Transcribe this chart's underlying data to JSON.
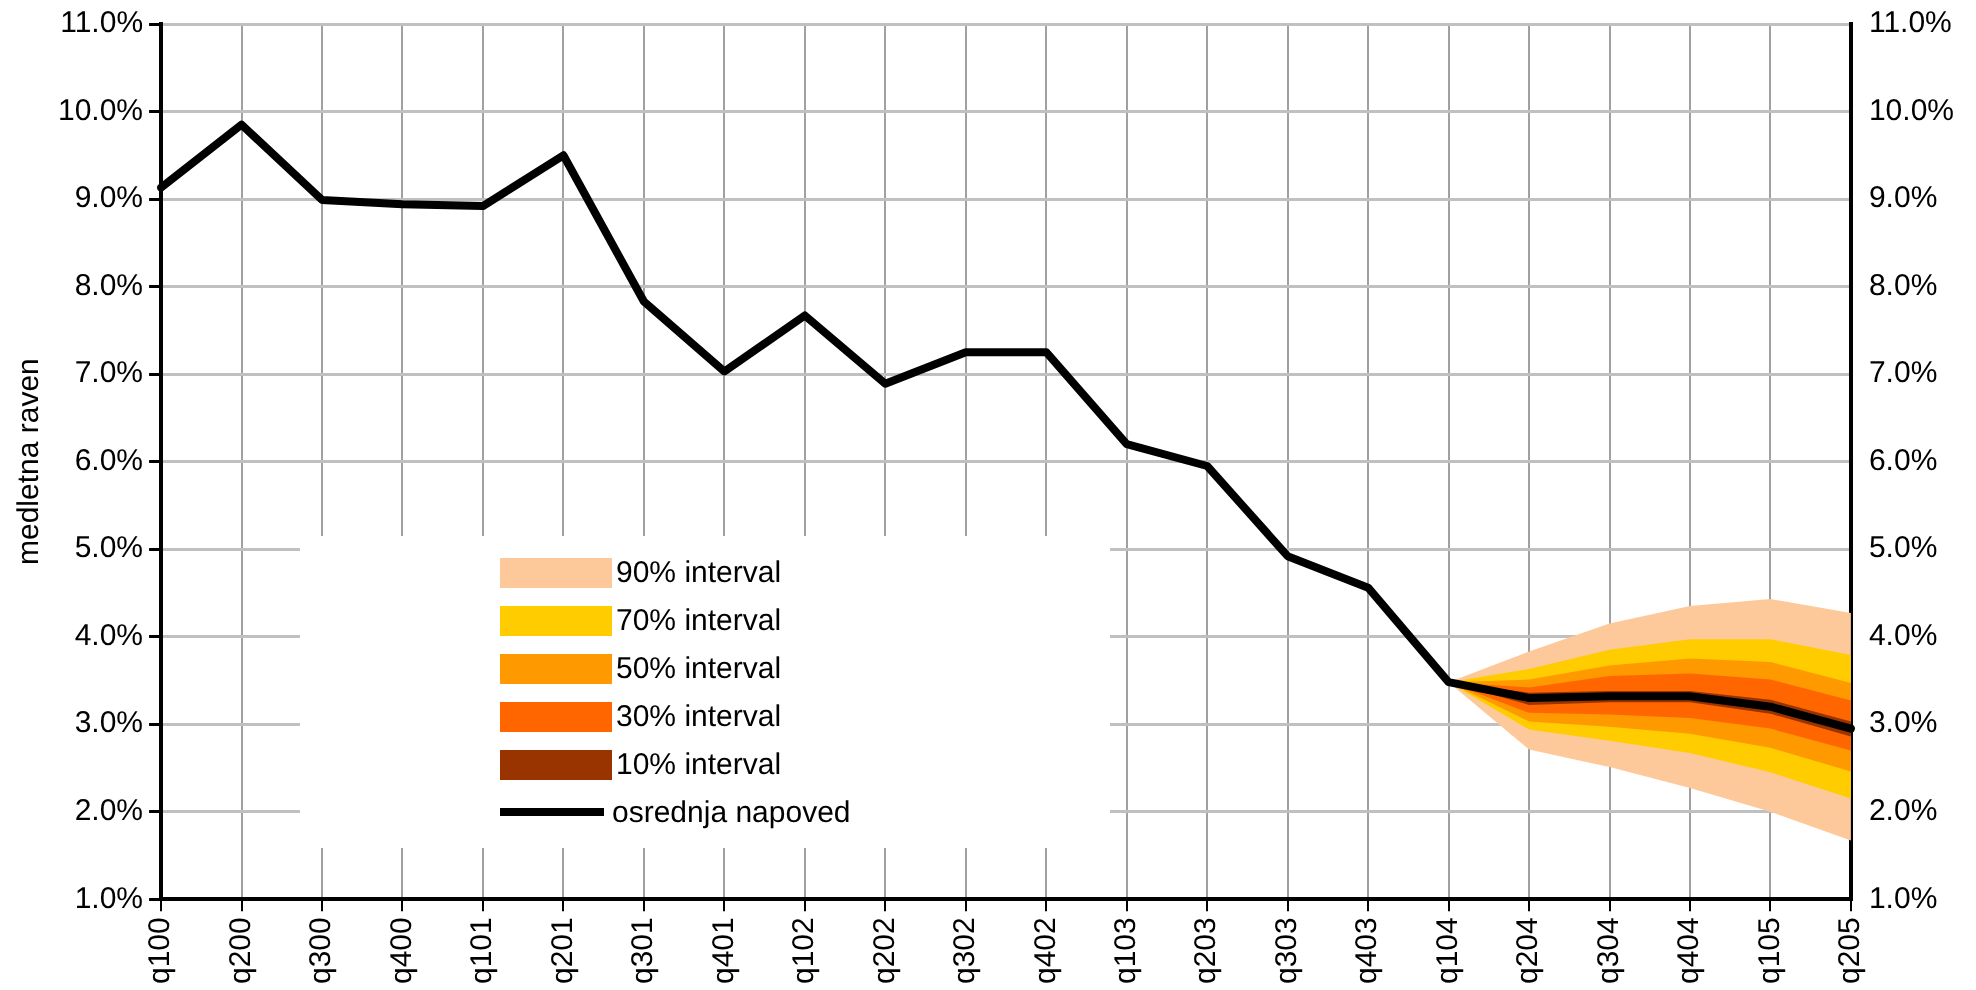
{
  "chart_data": {
    "type": "line",
    "ylabel": "medletna raven",
    "categories": [
      "q100",
      "q200",
      "q300",
      "q400",
      "q101",
      "q201",
      "q301",
      "q401",
      "q102",
      "q202",
      "q302",
      "q402",
      "q103",
      "q203",
      "q303",
      "q403",
      "q104",
      "q204",
      "q304",
      "q404",
      "q105",
      "q205"
    ],
    "series": [
      {
        "name": "90% interval",
        "type": "area",
        "color": "#fdc99a",
        "values": [
          null,
          null,
          null,
          null,
          null,
          null,
          null,
          null,
          null,
          null,
          null,
          null,
          null,
          null,
          null,
          null,
          null,
          null,
          null,
          null,
          null,
          null
        ],
        "lower": [
          null,
          null,
          null,
          null,
          null,
          null,
          null,
          null,
          null,
          null,
          null,
          null,
          null,
          null,
          null,
          null,
          3.48,
          2.71,
          2.51,
          2.27,
          2.0,
          1.67
        ],
        "upper": [
          null,
          null,
          null,
          null,
          null,
          null,
          null,
          null,
          null,
          null,
          null,
          null,
          null,
          null,
          null,
          null,
          3.48,
          3.83,
          4.15,
          4.35,
          4.43,
          4.27
        ]
      },
      {
        "name": "70% interval",
        "type": "area",
        "color": "#ffcc00",
        "values": [
          null,
          null,
          null,
          null,
          null,
          null,
          null,
          null,
          null,
          null,
          null,
          null,
          null,
          null,
          null,
          null,
          null,
          null,
          null,
          null,
          null,
          null
        ],
        "lower": [
          null,
          null,
          null,
          null,
          null,
          null,
          null,
          null,
          null,
          null,
          null,
          null,
          null,
          null,
          null,
          null,
          3.48,
          2.94,
          2.81,
          2.67,
          2.45,
          2.15
        ],
        "upper": [
          null,
          null,
          null,
          null,
          null,
          null,
          null,
          null,
          null,
          null,
          null,
          null,
          null,
          null,
          null,
          null,
          3.48,
          3.63,
          3.85,
          3.97,
          3.97,
          3.79
        ]
      },
      {
        "name": "50% interval",
        "type": "area",
        "color": "#ff9900",
        "values": [
          null,
          null,
          null,
          null,
          null,
          null,
          null,
          null,
          null,
          null,
          null,
          null,
          null,
          null,
          null,
          null,
          null,
          null,
          null,
          null,
          null,
          null
        ],
        "lower": [
          null,
          null,
          null,
          null,
          null,
          null,
          null,
          null,
          null,
          null,
          null,
          null,
          null,
          null,
          null,
          null,
          3.48,
          3.03,
          2.97,
          2.89,
          2.73,
          2.46
        ],
        "upper": [
          null,
          null,
          null,
          null,
          null,
          null,
          null,
          null,
          null,
          null,
          null,
          null,
          null,
          null,
          null,
          null,
          3.48,
          3.51,
          3.67,
          3.75,
          3.71,
          3.47
        ]
      },
      {
        "name": "30% interval",
        "type": "area",
        "color": "#ff6600",
        "values": [
          null,
          null,
          null,
          null,
          null,
          null,
          null,
          null,
          null,
          null,
          null,
          null,
          null,
          null,
          null,
          null,
          null,
          null,
          null,
          null,
          null,
          null
        ],
        "lower": [
          null,
          null,
          null,
          null,
          null,
          null,
          null,
          null,
          null,
          null,
          null,
          null,
          null,
          null,
          null,
          null,
          3.48,
          3.13,
          3.11,
          3.07,
          2.95,
          2.7
        ],
        "upper": [
          null,
          null,
          null,
          null,
          null,
          null,
          null,
          null,
          null,
          null,
          null,
          null,
          null,
          null,
          null,
          null,
          3.48,
          3.42,
          3.55,
          3.58,
          3.51,
          3.27
        ]
      },
      {
        "name": "10% interval",
        "type": "area",
        "color": "#993300",
        "values": [
          null,
          null,
          null,
          null,
          null,
          null,
          null,
          null,
          null,
          null,
          null,
          null,
          null,
          null,
          null,
          null,
          null,
          null,
          null,
          null,
          null,
          null
        ],
        "lower": [
          null,
          null,
          null,
          null,
          null,
          null,
          null,
          null,
          null,
          null,
          null,
          null,
          null,
          null,
          null,
          null,
          3.48,
          3.22,
          3.25,
          3.25,
          3.12,
          2.86
        ],
        "upper": [
          null,
          null,
          null,
          null,
          null,
          null,
          null,
          null,
          null,
          null,
          null,
          null,
          null,
          null,
          null,
          null,
          3.48,
          3.36,
          3.38,
          3.38,
          3.28,
          3.03
        ]
      },
      {
        "name": "osrednja napoved",
        "type": "line",
        "color": "#000000",
        "values": [
          9.13,
          9.85,
          8.99,
          8.94,
          8.92,
          9.5,
          7.83,
          7.03,
          7.67,
          6.89,
          7.25,
          7.25,
          6.2,
          5.95,
          4.92,
          4.56,
          3.48,
          3.3,
          3.32,
          3.32,
          3.2,
          2.95
        ]
      }
    ],
    "ylim": [
      1,
      11
    ],
    "yticks": [
      {
        "value": 1,
        "label": "1.0%"
      },
      {
        "value": 2,
        "label": "2.0%"
      },
      {
        "value": 3,
        "label": "3.0%"
      },
      {
        "value": 4,
        "label": "4.0%"
      },
      {
        "value": 5,
        "label": "5.0%"
      },
      {
        "value": 6,
        "label": "6.0%"
      },
      {
        "value": 7,
        "label": "7.0%"
      },
      {
        "value": 8,
        "label": "8.0%"
      },
      {
        "value": 9,
        "label": "9.0%"
      },
      {
        "value": 10,
        "label": "10.0%"
      },
      {
        "value": 11,
        "label": "11.0%"
      }
    ],
    "y2lim": [
      1,
      11
    ],
    "y2ticks": [
      {
        "value": 1,
        "label": "1.0%"
      },
      {
        "value": 2,
        "label": "2.0%"
      },
      {
        "value": 3,
        "label": "3.0%"
      },
      {
        "value": 4,
        "label": "4.0%"
      },
      {
        "value": 5,
        "label": "5.0%"
      },
      {
        "value": 6,
        "label": "6.0%"
      },
      {
        "value": 7,
        "label": "7.0%"
      },
      {
        "value": 8,
        "label": "8.0%"
      },
      {
        "value": 9,
        "label": "9.0%"
      },
      {
        "value": 10,
        "label": "10.0%"
      },
      {
        "value": 11,
        "label": "11.0%"
      }
    ],
    "grid": true,
    "legend": "bottom left",
    "marker": "none",
    "line_style": "solid"
  }
}
